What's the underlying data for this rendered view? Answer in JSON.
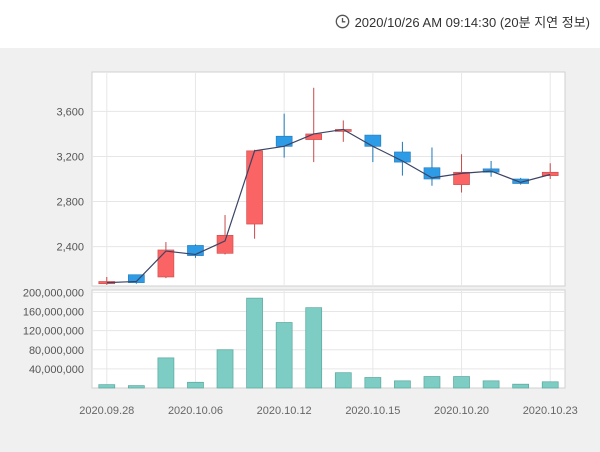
{
  "header": {
    "timestamp": "2020/10/26 AM 09:14:30 (20분 지연 정보)",
    "clock_icon": "clock-icon"
  },
  "chart_data": {
    "type": "candlestick",
    "colors": {
      "up": "#fa6464",
      "down": "#2e9be6",
      "volume": "#7dcdc4",
      "ma": "#3c4466"
    },
    "price_axis": {
      "ticks": [
        2400,
        2800,
        3200,
        3600
      ],
      "tick_labels": [
        "2,400",
        "2,800",
        "3,200",
        "3,600"
      ],
      "range": [
        2050,
        3950
      ]
    },
    "volume_axis": {
      "ticks": [
        40000000,
        80000000,
        120000000,
        160000000,
        200000000
      ],
      "tick_labels": [
        "40,000,000",
        "80,000,000",
        "120,000,000",
        "160,000,000",
        "200,000,000"
      ],
      "range": [
        0,
        205000000
      ]
    },
    "x_tick_labels": [
      {
        "index": 0,
        "label": "2020.09.28"
      },
      {
        "index": 3,
        "label": "2020.10.06"
      },
      {
        "index": 6,
        "label": "2020.10.12"
      },
      {
        "index": 9,
        "label": "2020.10.15"
      },
      {
        "index": 12,
        "label": "2020.10.20"
      },
      {
        "index": 15,
        "label": "2020.10.23"
      }
    ],
    "candles": [
      {
        "open": 2070,
        "close": 2090,
        "high": 2130,
        "low": 2060,
        "volume": 7000000
      },
      {
        "open": 2150,
        "close": 2080,
        "high": 2150,
        "low": 2070,
        "volume": 5000000
      },
      {
        "open": 2130,
        "close": 2370,
        "high": 2440,
        "low": 2120,
        "volume": 63000000
      },
      {
        "open": 2410,
        "close": 2320,
        "high": 2420,
        "low": 2300,
        "volume": 12000000
      },
      {
        "open": 2340,
        "close": 2500,
        "high": 2680,
        "low": 2330,
        "volume": 80000000
      },
      {
        "open": 2600,
        "close": 3250,
        "high": 3260,
        "low": 2470,
        "volume": 188000000
      },
      {
        "open": 3380,
        "close": 3290,
        "high": 3580,
        "low": 3190,
        "volume": 137000000
      },
      {
        "open": 3350,
        "close": 3400,
        "high": 3810,
        "low": 3150,
        "volume": 168000000
      },
      {
        "open": 3430,
        "close": 3440,
        "high": 3520,
        "low": 3330,
        "volume": 32000000
      },
      {
        "open": 3390,
        "close": 3290,
        "high": 3390,
        "low": 3150,
        "volume": 22000000
      },
      {
        "open": 3240,
        "close": 3150,
        "high": 3330,
        "low": 3030,
        "volume": 15000000
      },
      {
        "open": 3100,
        "close": 3000,
        "high": 3280,
        "low": 2940,
        "volume": 24000000
      },
      {
        "open": 2950,
        "close": 3060,
        "high": 3220,
        "low": 2880,
        "volume": 24000000
      },
      {
        "open": 3090,
        "close": 3060,
        "high": 3160,
        "low": 3020,
        "volume": 15000000
      },
      {
        "open": 3000,
        "close": 2960,
        "high": 3010,
        "low": 2950,
        "volume": 8000000
      },
      {
        "open": 3030,
        "close": 3060,
        "high": 3140,
        "low": 3000,
        "volume": 13000000
      }
    ],
    "moving_average": [
      2080,
      2090,
      2360,
      2330,
      2450,
      3250,
      3290,
      3400,
      3440,
      3290,
      3160,
      3010,
      3050,
      3070,
      2970,
      3040
    ]
  }
}
